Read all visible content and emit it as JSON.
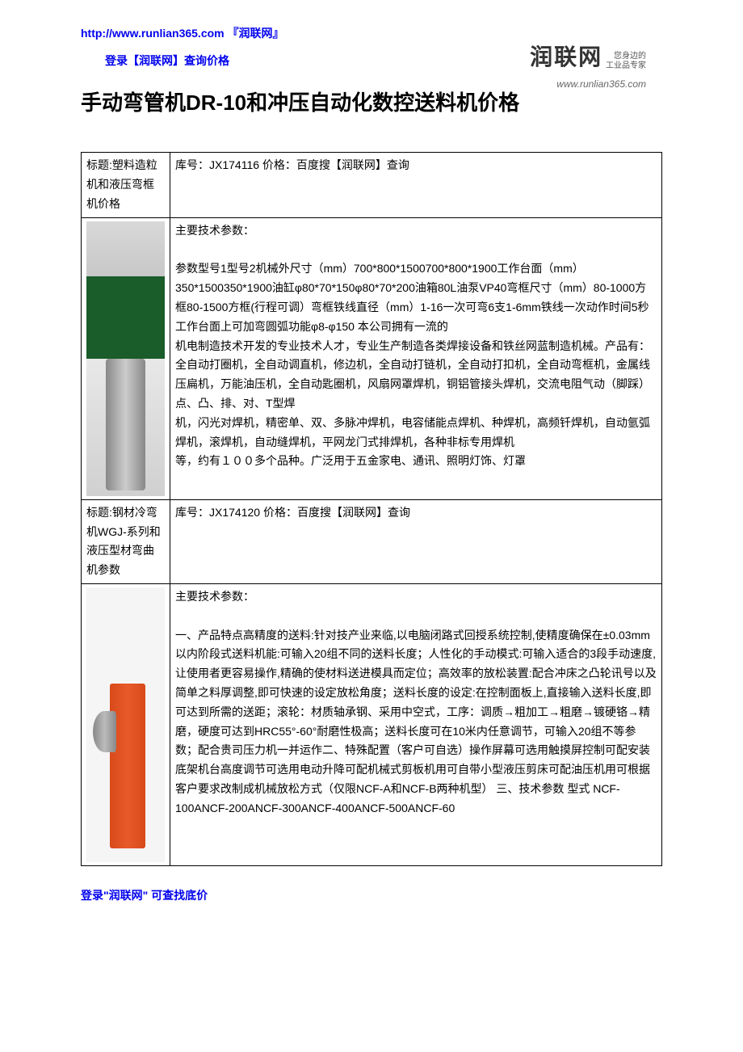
{
  "header": {
    "url": "http://www.runlian365.com 『润联网』",
    "login_text": "登录【润联网】查询价格"
  },
  "logo": {
    "main": "润联网",
    "sub_line1": "您身边的",
    "sub_line2": "工业品专家",
    "url": "www.runlian365.com"
  },
  "main_title": "手动弯管机DR-10和冲压自动化数控送料机价格",
  "products": [
    {
      "title_label": "标题:塑料造粒机和液压弯框机价格",
      "sku_line": "库号：JX174116 价格：百度搜【润联网】查询",
      "spec_header": "主要技术参数：",
      "spec_body": "参数型号1型号2机械外尺寸（mm）700*800*1500700*800*1900工作台面（mm）350*1500350*1900油缸φ80*70*150φ80*70*200油箱80L油泵VP40弯框尺寸（mm）80-1000方框80-1500方框(行程可调）弯框铁线直径（mm）1-16一次可弯6支1-6mm铁线一次动作时间5秒工作台面上可加弯圆弧功能φ8-φ150 本公司拥有一流的\n机电制造技术开发的专业技术人才，专业生产制造各类焊接设备和铁丝网蓝制造机械。产品有：全自动打圈机，全自动调直机，修边机，全自动打链机，全自动打扣机，全自动弯框机，金属线压扁机，万能油压机，全自动匙圈机，风扇网罩焊机，铜铝管接头焊机，交流电阻气动（脚踩）点、凸、排、对、T型焊\n机，闪光对焊机，精密单、双、多脉冲焊机，电容储能点焊机、种焊机，高频钎焊机，自动氩弧焊机，滚焊机，自动缝焊机，平网龙门式排焊机，各种非标专用焊机\n等，约有１００多个品种。广泛用于五金家电、通讯、照明灯饰、灯罩"
    },
    {
      "title_label": "标题:钢材冷弯机WGJ-系列和液压型材弯曲机参数",
      "sku_line": "库号：JX174120 价格：百度搜【润联网】查询",
      "spec_header": "主要技术参数：",
      "spec_body": "一、产品特点高精度的送料:针对技产业来临,以电脑闭路式回授系统控制,使精度确保在±0.03mm以内阶段式送料机能:可输入20组不同的送料长度；人性化的手动模式:可输入适合的3段手动速度,让使用者更容易操作,精确的使材料送进模具而定位；高效率的放松装置:配合冲床之凸轮讯号以及简单之料厚调整,即可快速的设定放松角度；送料长度的设定:在控制面板上,直接输入送料长度,即可达到所需的送距；滚轮：材质轴承钢、采用中空式，工序：调质→粗加工→粗磨→镀硬铬→精磨，硬度可达到HRC55°-60°耐磨性极高；送料长度可在10米内任意调节，可输入20组不等参数；配合贵司压力机一并运作二、特殊配置（客户可自选）操作屏幕可选用触摸屏控制可配安装底架机台高度调节可选用电动升降可配机械式剪板机用可自带小型液压剪床可配油压机用可根据客户要求改制成机械放松方式（仅限NCF-A和NCF-B两种机型） 三、技术参数 型式 NCF-100ANCF-200ANCF-300ANCF-400ANCF-500ANCF-60"
    }
  ],
  "footer": {
    "note": "登录\"润联网\" 可查找底价"
  },
  "colors": {
    "link_blue": "#0000ee",
    "text_black": "#000000",
    "border": "#000000"
  }
}
